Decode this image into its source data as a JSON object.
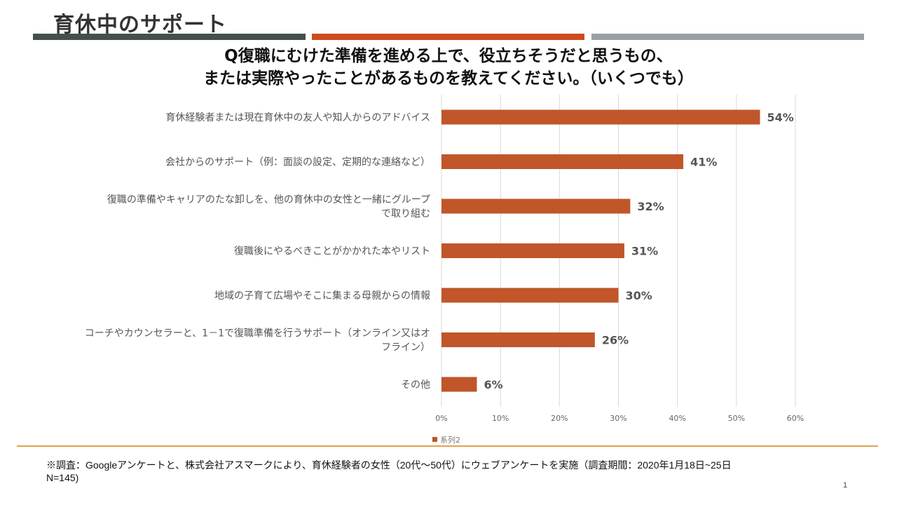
{
  "slide": {
    "title": "育休中のサポート",
    "question_lines": [
      "Q復職にむけた準備を進める上で、役立ちそうだと思うもの、",
      "または実際やったことがあるものを教えてください。（いくつでも）"
    ],
    "footnote_lines": [
      "※調査：Googleアンケートと、株式会社アスマークにより、育休経験者の女性（20代～50代）にウェブアンケートを実施（調査期間：2020年1月18日~25日",
      "N=145)"
    ],
    "page_number": "1"
  },
  "colors": {
    "accent_dark": "#44504f",
    "accent_orange": "#cc4c1e",
    "accent_gray": "#98a0a6",
    "bar": "#c0562a",
    "footer_rule": "#e0a24e",
    "grid": "#d9d9d9"
  },
  "chart_data": {
    "type": "bar",
    "orientation": "horizontal",
    "categories": [
      [
        "育休経験者または現在育休中の友人や知人からのアドバイス"
      ],
      [
        "会社からのサポート（例：面談の設定、定期的な連絡など）"
      ],
      [
        "復職の準備やキャリアのたな卸しを、他の育休中の女性と一緒にグループ",
        "で取り組む"
      ],
      [
        "復職後にやるべきことがかかれた本やリスト"
      ],
      [
        "地域の子育て広場やそこに集まる母親からの情報"
      ],
      [
        "コーチやカウンセラーと、1－1で復職準備を行うサポート（オンライン又はオ",
        "フライン）"
      ],
      [
        "その他"
      ]
    ],
    "series": [
      {
        "name": "系列2",
        "values": [
          0.54,
          0.41,
          0.32,
          0.31,
          0.3,
          0.26,
          0.06
        ],
        "labels": [
          "54%",
          "41%",
          "32%",
          "31%",
          "30%",
          "26%",
          "6%"
        ]
      }
    ],
    "x_ticks": [
      "0%",
      "10%",
      "20%",
      "30%",
      "40%",
      "50%",
      "60%"
    ],
    "xlim": [
      0,
      0.6
    ],
    "grid": true,
    "legend": "bottom-left"
  }
}
